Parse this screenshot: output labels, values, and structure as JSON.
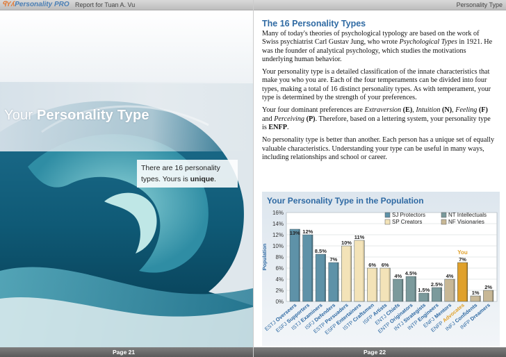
{
  "header": {
    "logo_text": "Personality PRO",
    "report_label": "Report for Tuan A. Vu",
    "right_header": "Personality Type"
  },
  "left_page": {
    "title_light": "Your",
    "title_bold": "Personality Type",
    "note_line1": "There are 16 personality",
    "note_line2_prefix": "types. Yours is ",
    "note_bold": "unique",
    "note_suffix": ".",
    "page_number": "Page 21"
  },
  "right_page": {
    "section_title": "The 16 Personality Types",
    "p1_a": "Many of today's theories of psychological typology are based on the work of Swiss psychiatrist Carl Gustav Jung, who wrote ",
    "p1_italic": "Psychological Types",
    "p1_b": " in 1921. He was the founder of analytical psychology, which studies the motivations underlying human behavior.",
    "p2": "Your personality type is a detailed classification of the innate characteristics that make you who you are. Each of the four temperaments can be divided into four types, making a total of 16 distinct personality types. As with temperament, your type is determined by the strength of your preferences.",
    "p3_a": "Your four dominant preferences are ",
    "p3_e": "Extraversion",
    "p3_e_letter": "(E)",
    "p3_sep1": ", ",
    "p3_n": "Intuition",
    "p3_n_letter": "(N)",
    "p3_sep2": ", ",
    "p3_f": "Feeling",
    "p3_f_letter": "(F)",
    "p3_and": " and ",
    "p3_p": "Perceiving",
    "p3_p_letter": "(P)",
    "p3_b": ". Therefore, based on a lettering system, your personality type is ",
    "p3_type": "ENFP",
    "p3_end": ".",
    "p4": "No personality type is better than another. Each person has a unique set of equally valuable characteristics. Understanding your type can be useful in many ways, including relationships and school or career.",
    "page_number": "Page 22"
  },
  "chart_data": {
    "type": "bar",
    "title": "Your Personality Type in the Population",
    "ylabel": "Population",
    "ylim": [
      0,
      16
    ],
    "yticks": [
      "0%",
      "2%",
      "4%",
      "6%",
      "8%",
      "10%",
      "12%",
      "14%",
      "16%"
    ],
    "grid": true,
    "legend_position": "top-right",
    "highlight_label": "You",
    "categories": [
      {
        "type": "ESTJ",
        "name": "Overseers",
        "value": 13,
        "label": "13%",
        "group": "SJ"
      },
      {
        "type": "ESFJ",
        "name": "Supporters",
        "value": 12,
        "label": "12%",
        "group": "SJ"
      },
      {
        "type": "ISTJ",
        "name": "Examiners",
        "value": 8.5,
        "label": "8.5%",
        "group": "SJ"
      },
      {
        "type": "ISFJ",
        "name": "Defenders",
        "value": 7,
        "label": "7%",
        "group": "SJ"
      },
      {
        "type": "ESTP",
        "name": "Persuaders",
        "value": 10,
        "label": "10%",
        "group": "SP"
      },
      {
        "type": "ESFP",
        "name": "Entertainers",
        "value": 11,
        "label": "11%",
        "group": "SP"
      },
      {
        "type": "ISTP",
        "name": "Craftsmen",
        "value": 6,
        "label": "6%",
        "group": "SP"
      },
      {
        "type": "ISFP",
        "name": "Artists",
        "value": 6,
        "label": "6%",
        "group": "SP"
      },
      {
        "type": "ENTJ",
        "name": "Chiefs",
        "value": 4,
        "label": "4%",
        "group": "NT"
      },
      {
        "type": "ENTP",
        "name": "Originators",
        "value": 4.5,
        "label": "4.5%",
        "group": "NT"
      },
      {
        "type": "INTJ",
        "name": "Strategists",
        "value": 1.5,
        "label": "1.5%",
        "group": "NT"
      },
      {
        "type": "INTP",
        "name": "Engineers",
        "value": 2.5,
        "label": "2.5%",
        "group": "NT"
      },
      {
        "type": "ENFJ",
        "name": "Mentors",
        "value": 4,
        "label": "4%",
        "group": "NF"
      },
      {
        "type": "ENFP",
        "name": "Advocates",
        "value": 7,
        "label": "7%",
        "group": "NF",
        "highlight": true
      },
      {
        "type": "INFJ",
        "name": "Confidents",
        "value": 1,
        "label": "1%",
        "group": "NF"
      },
      {
        "type": "INFP",
        "name": "Dreamers",
        "value": 2,
        "label": "2%",
        "group": "NF"
      }
    ],
    "legend": [
      {
        "key": "SJ",
        "label": "SJ Protectors",
        "color": "#5e92a8"
      },
      {
        "key": "NT",
        "label": "NT Intellectuals",
        "color": "#7b9a9c"
      },
      {
        "key": "SP",
        "label": "SP Creators",
        "color": "#f3e3b8"
      },
      {
        "key": "NF",
        "label": "NF Visionaries",
        "color": "#c8b896"
      }
    ],
    "colors": {
      "SJ": "#5e92a8",
      "SP": "#f3e3b8",
      "NT": "#7b9a9c",
      "NF": "#c8b896",
      "highlight": "#e0a12b"
    }
  }
}
